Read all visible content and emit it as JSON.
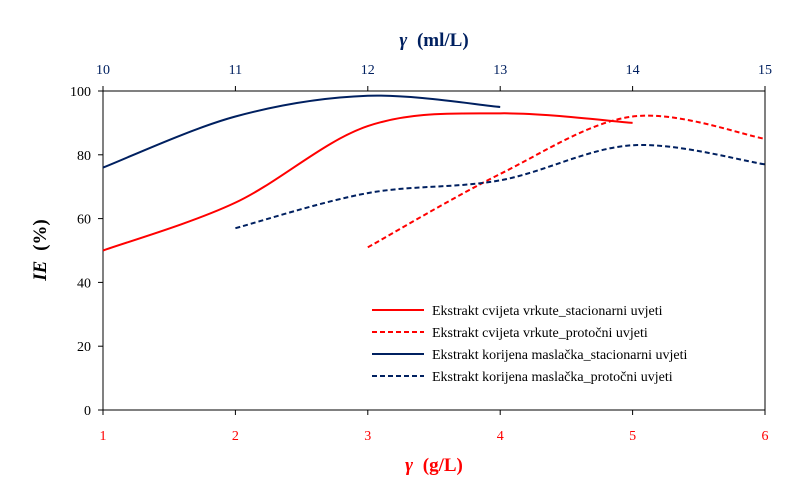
{
  "chart_data": {
    "type": "line",
    "y_axis": {
      "label_var": "IE",
      "label_unit": "(%)",
      "ylim": [
        0,
        100
      ],
      "ticks": [
        0,
        20,
        40,
        60,
        80,
        100
      ]
    },
    "x_axis_bottom": {
      "label_var": "γ",
      "label_unit": "(g/L)",
      "xlim": [
        1,
        6
      ],
      "ticks": [
        1,
        2,
        3,
        4,
        5,
        6
      ],
      "color": "#ff0000"
    },
    "x_axis_top": {
      "label_var": "γ",
      "label_unit": "(ml/L)",
      "xlim": [
        10,
        15
      ],
      "ticks": [
        10,
        11,
        12,
        13,
        14,
        15
      ],
      "color": "#002060"
    },
    "series": [
      {
        "name": "Ekstrakt cvijeta vrkute_stacionarni uvjeti",
        "axis": "bottom",
        "color": "#ff0000",
        "dash": "solid",
        "x": [
          1,
          2,
          3,
          4,
          5
        ],
        "y": [
          50,
          65,
          89,
          93,
          90
        ]
      },
      {
        "name": "Ekstrakt cvijeta vrkute_protočni uvjeti",
        "axis": "bottom",
        "color": "#ff0000",
        "dash": "dashed",
        "x": [
          3,
          4,
          5,
          6
        ],
        "y": [
          51,
          74,
          92,
          85
        ]
      },
      {
        "name": "Ekstrakt korijena maslačka_stacionarni uvjeti",
        "axis": "top",
        "color": "#002060",
        "dash": "solid",
        "x": [
          10,
          11,
          12,
          13
        ],
        "y": [
          76,
          92,
          98.5,
          95
        ]
      },
      {
        "name": "Ekstrakt korijena maslačka_protočni uvjeti",
        "axis": "top",
        "color": "#002060",
        "dash": "dashed",
        "x": [
          11,
          12,
          13,
          14,
          15
        ],
        "y": [
          57,
          68,
          72,
          83,
          77
        ]
      }
    ],
    "legend_position": "bottom-right",
    "grid": false
  }
}
